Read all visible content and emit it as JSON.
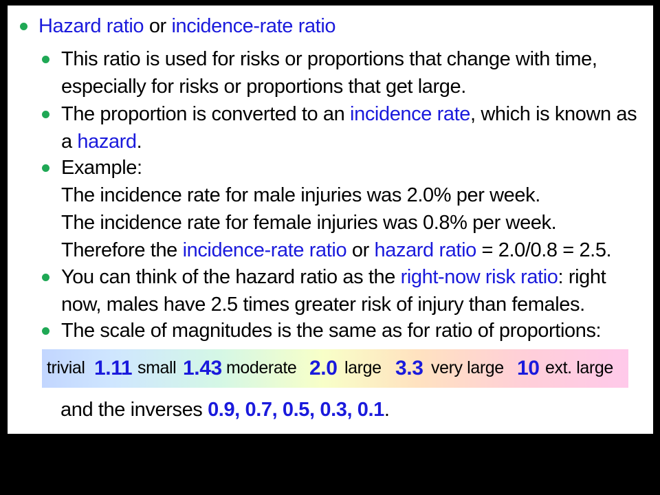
{
  "heading": {
    "part1": "Hazard ratio",
    "connector": " or ",
    "part2": "incidence-rate ratio"
  },
  "bullets": {
    "b1": {
      "line1": "This ratio is used for risks or proportions that change with time,",
      "line2": "especially for risks or proportions that get large."
    },
    "b2": {
      "line1_pre": "The proportion is converted to an ",
      "line1_hl": "incidence rate",
      "line1_post": ", which is known as",
      "line2_pre": "a ",
      "line2_hl": "hazard",
      "line2_post": "."
    },
    "b3": {
      "line1": "Example:",
      "line2": "The incidence rate for male injuries was 2.0% per week.",
      "line3": "The incidence rate for female injuries was 0.8% per week.",
      "line4_pre": "Therefore the ",
      "line4_hl1": "incidence-rate ratio",
      "line4_mid": " or ",
      "line4_hl2": "hazard ratio",
      "line4_post": " = 2.0/0.8 = 2.5."
    },
    "b4": {
      "line1_pre": "You can think of the hazard ratio as the ",
      "line1_hl": "right-now risk ratio",
      "line1_post": ": right",
      "line2": "now, males have 2.5 times greater risk of injury than females."
    },
    "b5": {
      "line1": "The scale of magnitudes is the same as for ratio of proportions:"
    }
  },
  "scale": {
    "trivial": "trivial",
    "t1": "1.11",
    "small": "small",
    "t2": "1.43",
    "moderate": "moderate",
    "t3": "2.0",
    "large": "large",
    "t4": "3.3",
    "very_large": "very large",
    "t5": "10",
    "ext_large": "ext. large"
  },
  "inverses": {
    "prefix": "and the inverses ",
    "values": "0.9, 0.7, 0.5, 0.3, 0.1",
    "suffix": "."
  },
  "colors": {
    "highlight": "#1a1adc",
    "bullet_dot": "#1fa855",
    "background": "#ffffff",
    "frame": "#000000"
  }
}
